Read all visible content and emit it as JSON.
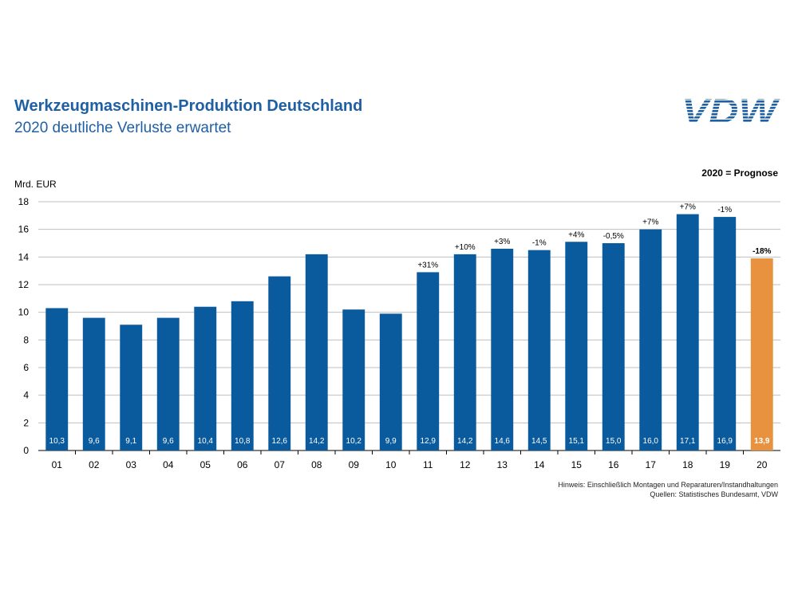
{
  "header": {
    "title": "Werkzeugmaschinen-Produktion Deutschland",
    "subtitle": "2020 deutliche Verluste erwartet",
    "logo_text": "VDW",
    "prognose_note": "2020 = Prognose"
  },
  "footer": {
    "hinweis": "Hinweis: Einschließlich Montagen und Reparaturen/Instandhaltungen",
    "quellen": "Quellen: Statistisches Bundesamt, VDW"
  },
  "colors": {
    "bar": "#0a5a9e",
    "forecast_bar": "#e8913e",
    "title": "#1f5fa3",
    "grid": "#bfbfbf"
  },
  "chart_data": {
    "type": "bar",
    "ylabel": "Mrd. EUR",
    "ylim": [
      0,
      18
    ],
    "yticks": [
      0,
      2,
      4,
      6,
      8,
      10,
      12,
      14,
      16,
      18
    ],
    "grid": true,
    "categories": [
      "01",
      "02",
      "03",
      "04",
      "05",
      "06",
      "07",
      "08",
      "09",
      "10",
      "11",
      "12",
      "13",
      "14",
      "15",
      "16",
      "17",
      "18",
      "19",
      "20"
    ],
    "values": [
      10.3,
      9.6,
      9.1,
      9.6,
      10.4,
      10.8,
      12.6,
      14.2,
      10.2,
      9.9,
      12.9,
      14.2,
      14.6,
      14.5,
      15.1,
      15.0,
      16.0,
      17.1,
      16.9,
      13.9
    ],
    "value_labels": [
      "10,3",
      "9,6",
      "9,1",
      "9,6",
      "10,4",
      "10,8",
      "12,6",
      "14,2",
      "10,2",
      "9,9",
      "12,9",
      "14,2",
      "14,6",
      "14,5",
      "15,1",
      "15,0",
      "16,0",
      "17,1",
      "16,9",
      "13,9"
    ],
    "change_labels": [
      "",
      "",
      "",
      "",
      "",
      "",
      "",
      "",
      "",
      "",
      "+31%",
      "+10%",
      "+3%",
      "-1%",
      "+4%",
      "-0,5%",
      "+7%",
      "+7%",
      "-1%",
      "-18%"
    ],
    "forecast_index": 19
  }
}
